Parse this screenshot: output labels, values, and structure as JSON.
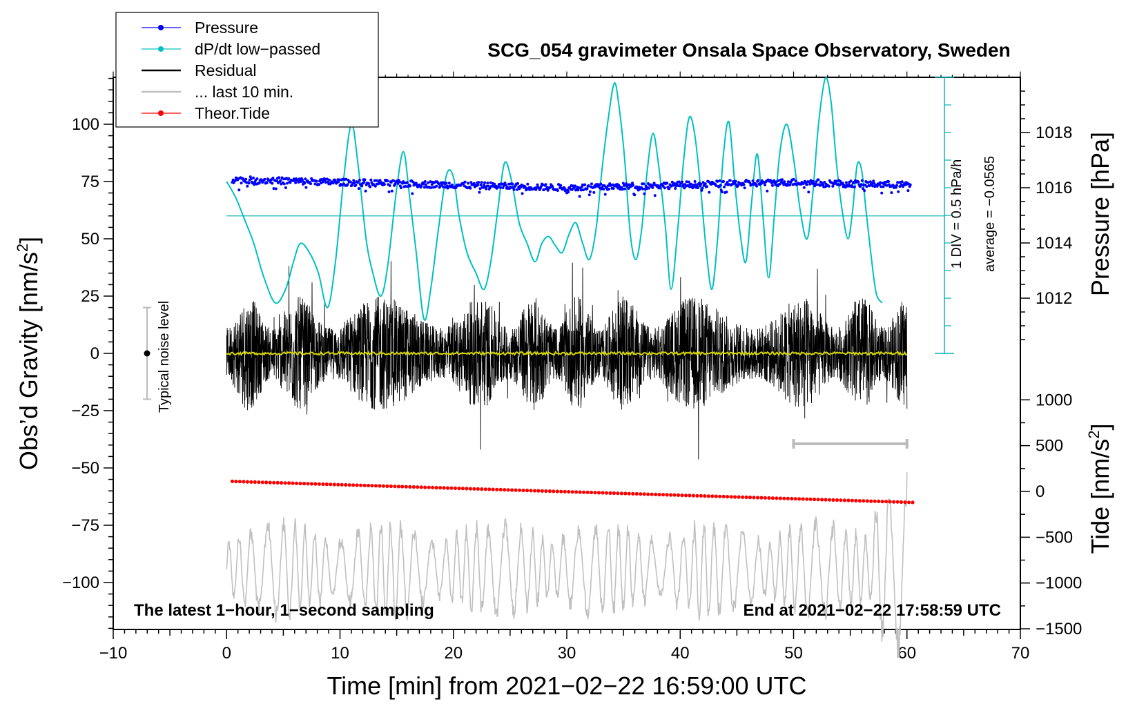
{
  "chart_data": {
    "type": "line",
    "title": "SCG_054 gravimeter Onsala Space Observatory, Sweden",
    "xlabel": "Time [min] from 2021−02−22 16:59:00 UTC",
    "ylabel_left": "Obs’d Gravity [nm/s",
    "ylabel_left_sup": "2",
    "ylabel_left_tail": "]",
    "ylabel_right_top": "Pressure [hPa]",
    "ylabel_right_bottom": "Tide [nm/s",
    "ylabel_right_bottom_sup": "2",
    "ylabel_right_bottom_tail": "]",
    "xlim": [
      -10,
      70
    ],
    "ylim": [
      -120,
      120
    ],
    "pressure_lim": [
      1010,
      1020
    ],
    "tide_lim": [
      -1500,
      1500
    ],
    "x_ticks": [
      "−10",
      "0",
      "10",
      "20",
      "30",
      "40",
      "50",
      "60",
      "70"
    ],
    "x_tick_values": [
      -10,
      0,
      10,
      20,
      30,
      40,
      50,
      60,
      70
    ],
    "y_ticks": [
      "100",
      "75",
      "50",
      "25",
      "0",
      "−25",
      "−50",
      "−75",
      "−100"
    ],
    "y_tick_values": [
      100,
      75,
      50,
      25,
      0,
      -25,
      -50,
      -75,
      -100
    ],
    "pressure_ticks": [
      "1018",
      "1016",
      "1014",
      "1012"
    ],
    "pressure_tick_values": [
      1018,
      1016,
      1014,
      1012
    ],
    "tide_ticks": [
      "1000",
      "500",
      "0",
      "−500",
      "−1000",
      "−1500"
    ],
    "tide_tick_values": [
      1000,
      500,
      0,
      -500,
      -1000,
      -1500
    ],
    "legend": [
      {
        "label": "Pressure",
        "color": "#0000ff",
        "marker": true
      },
      {
        "label": "dP/dt low−passed",
        "color": "#00c0c0",
        "marker": true
      },
      {
        "label": "Residual",
        "color": "#000000",
        "marker": false
      },
      {
        "label": "... last 10 min.",
        "color": "#c0c0c0",
        "marker": false
      },
      {
        "label": "Theor.Tide",
        "color": "#ff0000",
        "marker": true
      }
    ],
    "series": [
      {
        "name": "Pressure",
        "color": "#0000ff",
        "unit": "hPa",
        "mean": 1016.25,
        "noise": 0.12,
        "x": [
          0,
          10,
          20,
          30,
          40,
          50,
          60
        ],
        "values": [
          1016.3,
          1016.2,
          1016.1,
          1016.0,
          1016.1,
          1016.2,
          1016.1
        ]
      },
      {
        "name": "dP/dt low-passed",
        "color": "#00c0c0",
        "unit": "gravity-axis",
        "x": [
          0,
          0.8,
          1.7,
          2.4,
          3.3,
          4.3,
          5.2,
          5.9,
          6.5,
          7.3,
          8.1,
          8.9,
          9.6,
          10.3,
          11.0,
          11.6,
          12.3,
          12.9,
          13.6,
          14.2,
          15.0,
          15.6,
          16.1,
          16.7,
          17.4,
          18.0,
          18.7,
          19.4,
          20.0,
          20.5,
          21.2,
          22.0,
          22.7,
          23.3,
          23.9,
          24.5,
          25.1,
          25.8,
          26.5,
          27.2,
          27.8,
          28.4,
          29.0,
          29.6,
          30.2,
          30.8,
          31.4,
          32.0,
          32.6,
          33.1,
          33.7,
          34.2,
          34.6,
          35.1,
          35.6,
          36.1,
          36.6,
          37.1,
          37.6,
          38.1,
          38.7,
          39.2,
          39.8,
          40.3,
          40.8,
          41.3,
          41.8,
          42.3,
          42.8,
          43.3,
          43.8,
          44.3,
          44.8,
          45.3,
          45.8,
          46.3,
          46.8,
          47.3,
          47.8,
          48.3,
          48.8,
          49.4,
          50.0,
          50.6,
          51.2,
          51.7,
          52.2,
          52.8,
          53.3,
          53.8,
          54.3,
          54.8,
          55.2,
          55.6,
          56.0,
          56.4,
          56.9,
          57.3,
          57.8
        ],
        "values": [
          75,
          68,
          57,
          48,
          33,
          22,
          28,
          40,
          48,
          44,
          35,
          20,
          40,
          75,
          100,
          82,
          50,
          35,
          25,
          38,
          72,
          88,
          70,
          45,
          15,
          28,
          55,
          78,
          77,
          60,
          44,
          35,
          28,
          40,
          62,
          83,
          76,
          57,
          48,
          40,
          48,
          51,
          47,
          44,
          52,
          57,
          48,
          41,
          55,
          80,
          104,
          118,
          108,
          85,
          52,
          41,
          54,
          80,
          96,
          82,
          55,
          28,
          55,
          84,
          103,
          95,
          72,
          45,
          28,
          50,
          86,
          101,
          75,
          52,
          40,
          66,
          87,
          60,
          33,
          60,
          88,
          100,
          85,
          62,
          50,
          70,
          100,
          120,
          110,
          82,
          62,
          50,
          62,
          82,
          80,
          62,
          40,
          26,
          22
        ]
      },
      {
        "name": "Residual",
        "color": "#000000",
        "x_range": [
          0,
          60
        ],
        "amplitude_nm_s2": 25
      },
      {
        "name": "Residual mean",
        "color": "#d8d800",
        "x_range": [
          0,
          60
        ],
        "level": 0
      },
      {
        "name": "... last 10 min.",
        "color": "#c0c0c0",
        "unit": "tide-axis",
        "x_range": [
          0,
          60
        ],
        "center": -850,
        "amplitude": 600
      },
      {
        "name": "Theor.Tide",
        "color": "#ff0000",
        "unit": "tide-axis",
        "x": [
          0.5,
          60.5
        ],
        "values": [
          110,
          -120
        ]
      }
    ],
    "annotations": {
      "noise_label": "Typical noise level",
      "noise_level_nm_s2": 20,
      "dpdt_scale": "1 DIV = 0.5 hPa/h",
      "dpdt_average": "average = −0.0565",
      "left_bottom": "The latest 1−hour, 1−second sampling",
      "right_bottom": "End at 2021−02−22 17:58:59 UTC",
      "scale_bar_start_min": 50,
      "scale_bar_end_min": 60
    }
  }
}
